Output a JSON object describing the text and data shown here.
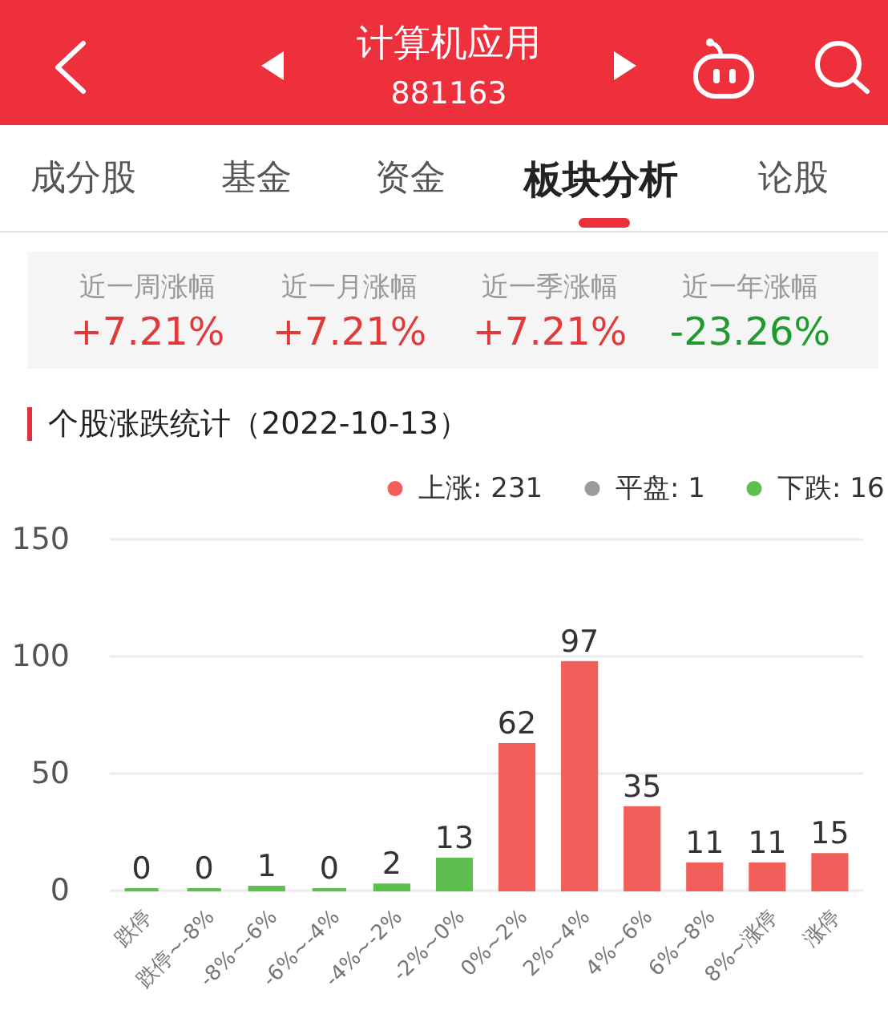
{
  "chart_data": {
    "type": "bar",
    "title": "个股涨跌统计（2022-10-13）",
    "annotations": [
      "计算机应用",
      "881163",
      "成分股",
      "基金",
      "资金",
      "板块分析",
      "论股",
      "近一周涨幅",
      "+7.21%",
      "近一月涨幅",
      "+7.21%",
      "近一季涨幅",
      "+7.21%",
      "近一年涨幅",
      "-23.26%"
    ],
    "categories": [
      "跌停",
      "跌停~-8%",
      "-8%~-6%",
      "-6%~-4%",
      "-4%~-2%",
      "-2%~0%",
      "0%~2%",
      "2%~4%",
      "4%~6%",
      "6%~8%",
      "8%~涨停",
      "涨停"
    ],
    "series": [
      {
        "name": "上涨: 231",
        "color": "#f25f5a",
        "values": [
          null,
          null,
          null,
          null,
          null,
          null,
          62,
          97,
          35,
          11,
          11,
          15
        ]
      },
      {
        "name": "平盘: 1",
        "color": "#9b9b9b",
        "values": [
          null,
          null,
          null,
          null,
          null,
          null,
          null,
          null,
          null,
          null,
          null,
          null
        ]
      },
      {
        "name": "下跌: 16",
        "color": "#5cbf4e",
        "values": [
          0,
          0,
          1,
          0,
          2,
          13,
          null,
          null,
          null,
          null,
          null,
          null
        ]
      }
    ],
    "ylim": [
      0,
      150
    ],
    "yticks": [
      0,
      50,
      100,
      150
    ],
    "grid": "y",
    "legend": "top right",
    "data_labels": true
  }
}
